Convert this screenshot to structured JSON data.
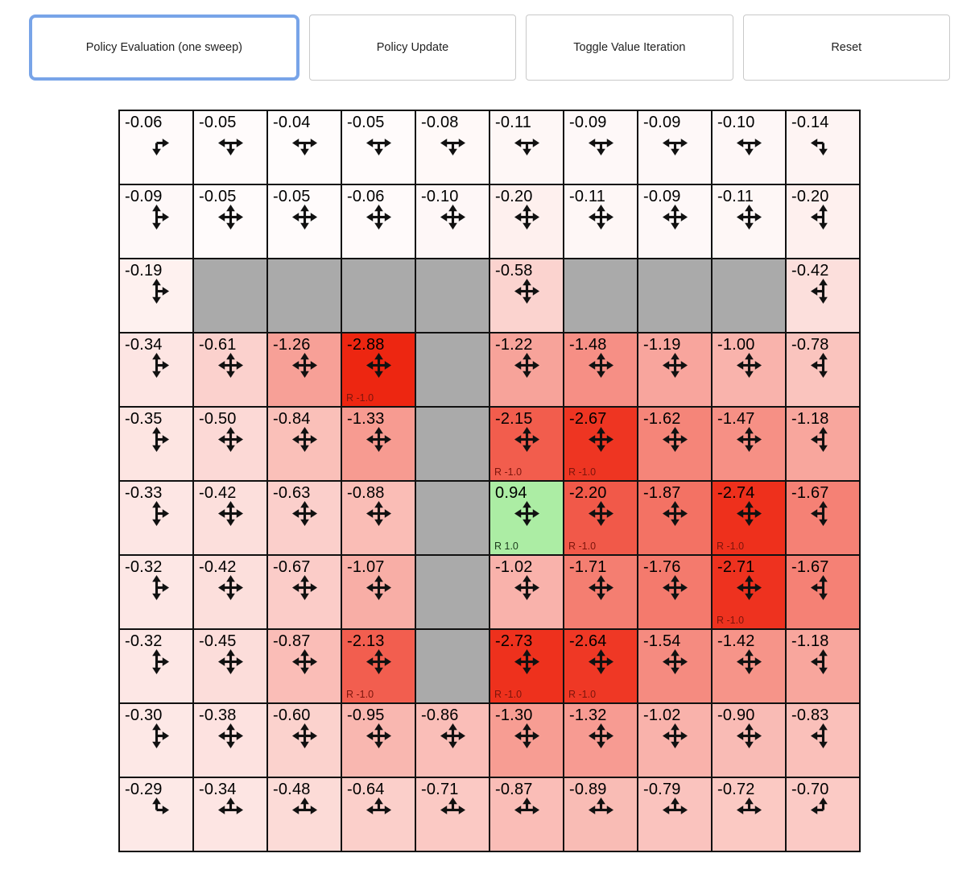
{
  "toolbar": {
    "buttons": [
      {
        "label": "Policy Evaluation (one sweep)",
        "active": true
      },
      {
        "label": "Policy Update",
        "active": false
      },
      {
        "label": "Toggle Value Iteration",
        "active": false
      },
      {
        "label": "Reset",
        "active": false
      }
    ]
  },
  "colors": {
    "accent_active_border": "#78a4e8",
    "button_border": "#c9c9c9",
    "wall": "#aaaaaa",
    "cell_border": "#111111",
    "value_text": "#000000",
    "arrow": "#111111",
    "reward_neg_text": "#7c150c",
    "reward_pos_text": "#1c3a1c"
  },
  "heat": {
    "scale": 2.9,
    "neg_delta": [
      18,
      219,
      240
    ],
    "pos_delta": [
      255,
      54,
      281
    ]
  },
  "grid": {
    "rows": 10,
    "cols": 10,
    "cells": [
      [
        {
          "label": "-0.06",
          "v": -0.06,
          "arrows": "rd"
        },
        {
          "label": "-0.05",
          "v": -0.05,
          "arrows": "lrd"
        },
        {
          "label": "-0.04",
          "v": -0.04,
          "arrows": "lrd"
        },
        {
          "label": "-0.05",
          "v": -0.05,
          "arrows": "lrd"
        },
        {
          "label": "-0.08",
          "v": -0.08,
          "arrows": "lrd"
        },
        {
          "label": "-0.11",
          "v": -0.11,
          "arrows": "lrd"
        },
        {
          "label": "-0.09",
          "v": -0.09,
          "arrows": "lrd"
        },
        {
          "label": "-0.09",
          "v": -0.09,
          "arrows": "lrd"
        },
        {
          "label": "-0.10",
          "v": -0.1,
          "arrows": "lrd"
        },
        {
          "label": "-0.14",
          "v": -0.14,
          "arrows": "ld"
        }
      ],
      [
        {
          "label": "-0.09",
          "v": -0.09,
          "arrows": "udr"
        },
        {
          "label": "-0.05",
          "v": -0.05,
          "arrows": "udlr"
        },
        {
          "label": "-0.05",
          "v": -0.05,
          "arrows": "udlr"
        },
        {
          "label": "-0.06",
          "v": -0.06,
          "arrows": "udlr"
        },
        {
          "label": "-0.10",
          "v": -0.1,
          "arrows": "udlr"
        },
        {
          "label": "-0.20",
          "v": -0.2,
          "arrows": "udlr"
        },
        {
          "label": "-0.11",
          "v": -0.11,
          "arrows": "udlr"
        },
        {
          "label": "-0.09",
          "v": -0.09,
          "arrows": "udlr"
        },
        {
          "label": "-0.11",
          "v": -0.11,
          "arrows": "udlr"
        },
        {
          "label": "-0.20",
          "v": -0.2,
          "arrows": "udl"
        }
      ],
      [
        {
          "label": "-0.19",
          "v": -0.19,
          "arrows": "udr"
        },
        {
          "wall": true
        },
        {
          "wall": true
        },
        {
          "wall": true
        },
        {
          "wall": true
        },
        {
          "label": "-0.58",
          "v": -0.58,
          "arrows": "udlr"
        },
        {
          "wall": true
        },
        {
          "wall": true
        },
        {
          "wall": true
        },
        {
          "label": "-0.42",
          "v": -0.42,
          "arrows": "udl"
        }
      ],
      [
        {
          "label": "-0.34",
          "v": -0.34,
          "arrows": "udr"
        },
        {
          "label": "-0.61",
          "v": -0.61,
          "arrows": "udlr"
        },
        {
          "label": "-1.26",
          "v": -1.26,
          "arrows": "udlr"
        },
        {
          "label": "-2.88",
          "v": -2.88,
          "arrows": "udlr",
          "r": "R -1.0"
        },
        {
          "wall": true
        },
        {
          "label": "-1.22",
          "v": -1.22,
          "arrows": "udlr"
        },
        {
          "label": "-1.48",
          "v": -1.48,
          "arrows": "udlr"
        },
        {
          "label": "-1.19",
          "v": -1.19,
          "arrows": "udlr"
        },
        {
          "label": "-1.00",
          "v": -1.0,
          "arrows": "udlr"
        },
        {
          "label": "-0.78",
          "v": -0.78,
          "arrows": "udl"
        }
      ],
      [
        {
          "label": "-0.35",
          "v": -0.35,
          "arrows": "udr"
        },
        {
          "label": "-0.50",
          "v": -0.5,
          "arrows": "udlr"
        },
        {
          "label": "-0.84",
          "v": -0.84,
          "arrows": "udlr"
        },
        {
          "label": "-1.33",
          "v": -1.33,
          "arrows": "udlr"
        },
        {
          "wall": true
        },
        {
          "label": "-2.15",
          "v": -2.15,
          "arrows": "udlr",
          "r": "R -1.0"
        },
        {
          "label": "-2.67",
          "v": -2.67,
          "arrows": "udlr",
          "r": "R -1.0"
        },
        {
          "label": "-1.62",
          "v": -1.62,
          "arrows": "udlr"
        },
        {
          "label": "-1.47",
          "v": -1.47,
          "arrows": "udlr"
        },
        {
          "label": "-1.18",
          "v": -1.18,
          "arrows": "udl"
        }
      ],
      [
        {
          "label": "-0.33",
          "v": -0.33,
          "arrows": "udr"
        },
        {
          "label": "-0.42",
          "v": -0.42,
          "arrows": "udlr"
        },
        {
          "label": "-0.63",
          "v": -0.63,
          "arrows": "udlr"
        },
        {
          "label": "-0.88",
          "v": -0.88,
          "arrows": "udlr"
        },
        {
          "wall": true
        },
        {
          "label": "0.94",
          "v": 0.94,
          "arrows": "udlr",
          "r": "R 1.0"
        },
        {
          "label": "-2.20",
          "v": -2.2,
          "arrows": "udlr",
          "r": "R -1.0"
        },
        {
          "label": "-1.87",
          "v": -1.87,
          "arrows": "udlr"
        },
        {
          "label": "-2.74",
          "v": -2.74,
          "arrows": "udlr",
          "r": "R -1.0"
        },
        {
          "label": "-1.67",
          "v": -1.67,
          "arrows": "udl"
        }
      ],
      [
        {
          "label": "-0.32",
          "v": -0.32,
          "arrows": "udr"
        },
        {
          "label": "-0.42",
          "v": -0.42,
          "arrows": "udlr"
        },
        {
          "label": "-0.67",
          "v": -0.67,
          "arrows": "udlr"
        },
        {
          "label": "-1.07",
          "v": -1.07,
          "arrows": "udlr"
        },
        {
          "wall": true
        },
        {
          "label": "-1.02",
          "v": -1.02,
          "arrows": "udlr"
        },
        {
          "label": "-1.71",
          "v": -1.71,
          "arrows": "udlr"
        },
        {
          "label": "-1.76",
          "v": -1.76,
          "arrows": "udlr"
        },
        {
          "label": "-2.71",
          "v": -2.71,
          "arrows": "udlr",
          "r": "R -1.0"
        },
        {
          "label": "-1.67",
          "v": -1.67,
          "arrows": "udl"
        }
      ],
      [
        {
          "label": "-0.32",
          "v": -0.32,
          "arrows": "udr"
        },
        {
          "label": "-0.45",
          "v": -0.45,
          "arrows": "udlr"
        },
        {
          "label": "-0.87",
          "v": -0.87,
          "arrows": "udlr"
        },
        {
          "label": "-2.13",
          "v": -2.13,
          "arrows": "udlr",
          "r": "R -1.0"
        },
        {
          "wall": true
        },
        {
          "label": "-2.73",
          "v": -2.73,
          "arrows": "udlr",
          "r": "R -1.0"
        },
        {
          "label": "-2.64",
          "v": -2.64,
          "arrows": "udlr",
          "r": "R -1.0"
        },
        {
          "label": "-1.54",
          "v": -1.54,
          "arrows": "udlr"
        },
        {
          "label": "-1.42",
          "v": -1.42,
          "arrows": "udlr"
        },
        {
          "label": "-1.18",
          "v": -1.18,
          "arrows": "udl"
        }
      ],
      [
        {
          "label": "-0.30",
          "v": -0.3,
          "arrows": "udr"
        },
        {
          "label": "-0.38",
          "v": -0.38,
          "arrows": "udlr"
        },
        {
          "label": "-0.60",
          "v": -0.6,
          "arrows": "udlr"
        },
        {
          "label": "-0.95",
          "v": -0.95,
          "arrows": "udlr"
        },
        {
          "label": "-0.86",
          "v": -0.86,
          "arrows": "udlr"
        },
        {
          "label": "-1.30",
          "v": -1.3,
          "arrows": "udlr"
        },
        {
          "label": "-1.32",
          "v": -1.32,
          "arrows": "udlr"
        },
        {
          "label": "-1.02",
          "v": -1.02,
          "arrows": "udlr"
        },
        {
          "label": "-0.90",
          "v": -0.9,
          "arrows": "udlr"
        },
        {
          "label": "-0.83",
          "v": -0.83,
          "arrows": "udl"
        }
      ],
      [
        {
          "label": "-0.29",
          "v": -0.29,
          "arrows": "ur"
        },
        {
          "label": "-0.34",
          "v": -0.34,
          "arrows": "ulr"
        },
        {
          "label": "-0.48",
          "v": -0.48,
          "arrows": "ulr"
        },
        {
          "label": "-0.64",
          "v": -0.64,
          "arrows": "ulr"
        },
        {
          "label": "-0.71",
          "v": -0.71,
          "arrows": "ulr"
        },
        {
          "label": "-0.87",
          "v": -0.87,
          "arrows": "ulr"
        },
        {
          "label": "-0.89",
          "v": -0.89,
          "arrows": "ulr"
        },
        {
          "label": "-0.79",
          "v": -0.79,
          "arrows": "ulr"
        },
        {
          "label": "-0.72",
          "v": -0.72,
          "arrows": "ulr"
        },
        {
          "label": "-0.70",
          "v": -0.7,
          "arrows": "ul"
        }
      ]
    ]
  }
}
